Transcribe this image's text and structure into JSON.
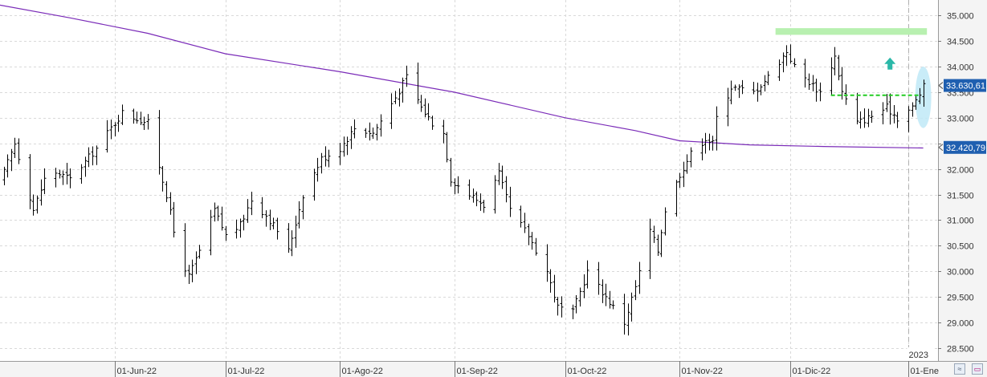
{
  "chart_data": {
    "type": "ohlc-bar",
    "y_ticks": [
      "28.500",
      "29.000",
      "29.500",
      "30.000",
      "30.500",
      "31.000",
      "31.500",
      "32.000",
      "32.500",
      "33.000",
      "33.500",
      "34.000",
      "34.500",
      "35.000"
    ],
    "y_tick_values": [
      28500,
      29000,
      29500,
      30000,
      30500,
      31000,
      31500,
      32000,
      32500,
      33000,
      33500,
      34000,
      34500,
      35000
    ],
    "ylim": [
      28250,
      35300
    ],
    "x_labels": [
      {
        "label": "01-Jun-22",
        "date": "2022-06-01"
      },
      {
        "label": "01-Jul-22",
        "date": "2022-07-01"
      },
      {
        "label": "01-Ago-22",
        "date": "2022-08-01"
      },
      {
        "label": "01-Sep-22",
        "date": "2022-09-01"
      },
      {
        "label": "01-Oct-22",
        "date": "2022-10-01"
      },
      {
        "label": "01-Nov-22",
        "date": "2022-11-01"
      },
      {
        "label": "01-Dic-22",
        "date": "2022-12-01"
      },
      {
        "label": "01-Ene",
        "date": "2023-01-02"
      }
    ],
    "xlim": [
      "2022-05-01",
      "2023-01-10"
    ],
    "year_marker": {
      "label": "2023",
      "date": "2023-01-02"
    },
    "price_tags": [
      {
        "label": "33.630,61",
        "value": 33630.61,
        "color": "#1f5fb0"
      },
      {
        "label": "32.420,79",
        "value": 32420.79,
        "color": "#1f5fb0"
      }
    ],
    "moving_average": {
      "color": "#7a2bb8",
      "points": [
        [
          "2022-05-01",
          35200
        ],
        [
          "2022-05-20",
          34950
        ],
        [
          "2022-06-10",
          34650
        ],
        [
          "2022-07-01",
          34250
        ],
        [
          "2022-08-01",
          33900
        ],
        [
          "2022-09-01",
          33500
        ],
        [
          "2022-10-01",
          33000
        ],
        [
          "2022-10-20",
          32750
        ],
        [
          "2022-11-01",
          32550
        ],
        [
          "2022-11-20",
          32470
        ],
        [
          "2022-12-10",
          32440
        ],
        [
          "2023-01-06",
          32410
        ]
      ]
    },
    "resistance_zone": {
      "color": "#b8f0b0",
      "x0": "2022-11-27",
      "x1": "2023-01-07",
      "y0": 34620,
      "y1": 34750
    },
    "support_line": {
      "color": "#22cc22",
      "x0": "2022-12-12",
      "x1": "2023-01-05",
      "y": 33440
    },
    "highlight_ellipse": {
      "color": "#bfe9f7",
      "center_date": "2023-01-06",
      "y0": 32800,
      "y1": 34000
    },
    "arrow": {
      "color": "#2bb8a8",
      "date": "2022-12-28",
      "y": 34050
    },
    "grid": true,
    "anchors": [
      [
        "2022-05-01",
        31750
      ],
      [
        "2022-05-05",
        32500
      ],
      [
        "2022-05-10",
        31200
      ],
      [
        "2022-05-14",
        32000
      ],
      [
        "2022-05-20",
        31800
      ],
      [
        "2022-05-27",
        32400
      ],
      [
        "2022-06-03",
        33100
      ],
      [
        "2022-06-10",
        32900
      ],
      [
        "2022-06-15",
        31500
      ],
      [
        "2022-06-18",
        30400
      ],
      [
        "2022-06-21",
        29900
      ],
      [
        "2022-06-24",
        30400
      ],
      [
        "2022-06-28",
        31200
      ],
      [
        "2022-07-01",
        30700
      ],
      [
        "2022-07-05",
        30900
      ],
      [
        "2022-07-08",
        31400
      ],
      [
        "2022-07-12",
        31100
      ],
      [
        "2022-07-15",
        30800
      ],
      [
        "2022-07-18",
        30400
      ],
      [
        "2022-07-22",
        31500
      ],
      [
        "2022-07-27",
        32200
      ],
      [
        "2022-08-01",
        32400
      ],
      [
        "2022-08-05",
        32800
      ],
      [
        "2022-08-10",
        32700
      ],
      [
        "2022-08-16",
        33400
      ],
      [
        "2022-08-19",
        33800
      ],
      [
        "2022-08-23",
        33200
      ],
      [
        "2022-08-26",
        32900
      ],
      [
        "2022-08-29",
        32700
      ],
      [
        "2022-08-31",
        31800
      ],
      [
        "2022-09-05",
        31500
      ],
      [
        "2022-09-09",
        31300
      ],
      [
        "2022-09-13",
        31900
      ],
      [
        "2022-09-16",
        31200
      ],
      [
        "2022-09-21",
        30700
      ],
      [
        "2022-09-26",
        30000
      ],
      [
        "2022-09-29",
        29300
      ],
      [
        "2022-10-03",
        29200
      ],
      [
        "2022-10-07",
        30000
      ],
      [
        "2022-10-12",
        29500
      ],
      [
        "2022-10-17",
        29000
      ],
      [
        "2022-10-20",
        29700
      ],
      [
        "2022-10-24",
        30800
      ],
      [
        "2022-10-26",
        30400
      ],
      [
        "2022-10-28",
        31200
      ],
      [
        "2022-11-01",
        31900
      ],
      [
        "2022-11-04",
        32300
      ],
      [
        "2022-11-08",
        32600
      ],
      [
        "2022-11-10",
        32500
      ],
      [
        "2022-11-11",
        33000
      ],
      [
        "2022-11-15",
        33600
      ],
      [
        "2022-11-21",
        33500
      ],
      [
        "2022-11-25",
        33800
      ],
      [
        "2022-11-30",
        34300
      ],
      [
        "2022-12-02",
        34000
      ],
      [
        "2022-12-06",
        33700
      ],
      [
        "2022-12-09",
        33500
      ],
      [
        "2022-12-13",
        34200
      ],
      [
        "2022-12-15",
        33500
      ],
      [
        "2022-12-19",
        32900
      ],
      [
        "2022-12-22",
        33000
      ],
      [
        "2022-12-27",
        33200
      ],
      [
        "2022-12-30",
        33000
      ],
      [
        "2023-01-03",
        33200
      ],
      [
        "2023-01-06",
        33600
      ]
    ]
  },
  "ui": {
    "scale_button_icon": "zigzag-icon",
    "window_button_icon": "window-icon"
  }
}
